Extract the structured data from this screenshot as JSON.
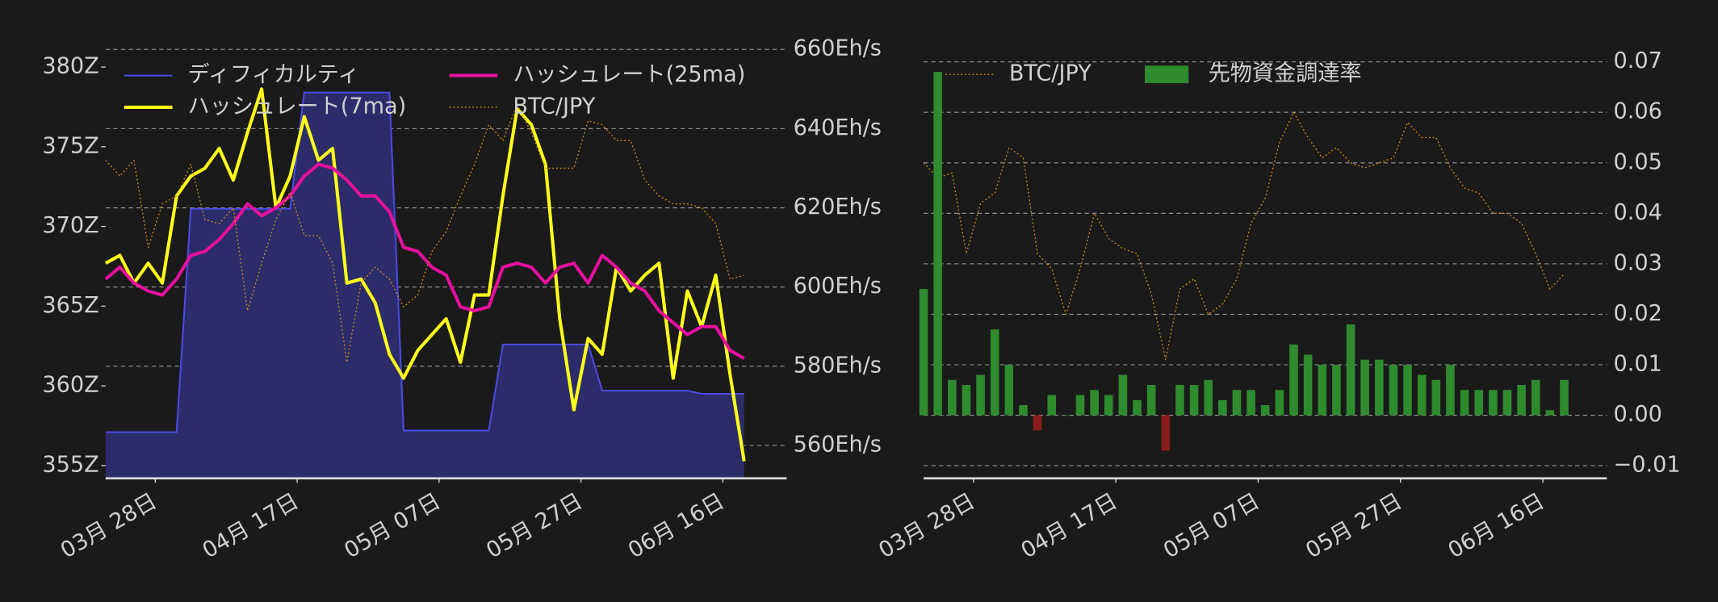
{
  "chart_data": [
    {
      "type": "line",
      "x": [
        "03-21",
        "03-23",
        "03-25",
        "03-27",
        "03-29",
        "03-31",
        "04-02",
        "04-04",
        "04-06",
        "04-08",
        "04-10",
        "04-12",
        "04-14",
        "04-16",
        "04-18",
        "04-20",
        "04-22",
        "04-24",
        "04-26",
        "04-28",
        "04-30",
        "05-02",
        "05-04",
        "05-06",
        "05-08",
        "05-10",
        "05-12",
        "05-14",
        "05-16",
        "05-18",
        "05-20",
        "05-22",
        "05-24",
        "05-26",
        "05-28",
        "05-30",
        "06-01",
        "06-03",
        "06-05",
        "06-07",
        "06-09",
        "06-11",
        "06-13",
        "06-15",
        "06-17",
        "06-19"
      ],
      "xlim": [
        "03-21",
        "06-25"
      ],
      "xticks": [
        {
          "value": "03-28",
          "label": "03月 28日"
        },
        {
          "value": "04-17",
          "label": "04月 17日"
        },
        {
          "value": "05-07",
          "label": "05月 07日"
        },
        {
          "value": "05-27",
          "label": "05月 27日"
        },
        {
          "value": "06-16",
          "label": "06月 16日"
        }
      ],
      "ylim": [
        354.2,
        381.8
      ],
      "yticks": [
        {
          "value": 355,
          "label": "355Z"
        },
        {
          "value": 360,
          "label": "360Z"
        },
        {
          "value": 365,
          "label": "365Z"
        },
        {
          "value": 370,
          "label": "370Z"
        },
        {
          "value": 375,
          "label": "375Z"
        },
        {
          "value": 380,
          "label": "380Z"
        }
      ],
      "y2lim": [
        551.7,
        662.8
      ],
      "y2ticks": [
        {
          "value": 560,
          "label": "560Eh/s"
        },
        {
          "value": 580,
          "label": "580Eh/s"
        },
        {
          "value": 600,
          "label": "600Eh/s"
        },
        {
          "value": 620,
          "label": "620Eh/s"
        },
        {
          "value": 640,
          "label": "640Eh/s"
        },
        {
          "value": 660,
          "label": "660Eh/s"
        }
      ],
      "grid": true,
      "series": [
        {
          "name": "ディフィカルティ",
          "type": "area",
          "color": "#4b4be6",
          "fill": "#2c2c6a",
          "values": [
            357.1,
            357.1,
            357.1,
            357.1,
            357.1,
            357.1,
            371.1,
            371.1,
            371.1,
            371.1,
            371.1,
            371.1,
            371.1,
            371.1,
            378.4,
            378.4,
            378.4,
            378.4,
            378.4,
            378.4,
            378.4,
            357.2,
            357.2,
            357.2,
            357.2,
            357.2,
            357.2,
            357.2,
            362.6,
            362.6,
            362.6,
            362.6,
            362.6,
            362.6,
            362.6,
            359.7,
            359.7,
            359.7,
            359.7,
            359.7,
            359.7,
            359.7,
            359.5,
            359.5,
            359.5,
            359.5
          ]
        },
        {
          "name": "ハッシュレート(7ma)",
          "type": "line",
          "axis": "y2",
          "color": "#ffff1a",
          "values": [
            606,
            608,
            601,
            606,
            601,
            623,
            628,
            630,
            635,
            627,
            639,
            650,
            620,
            628,
            643,
            632,
            635,
            601,
            602,
            596,
            583,
            577,
            584,
            588,
            592,
            581,
            598,
            598,
            623,
            645,
            641,
            631,
            592,
            569,
            587,
            583,
            605,
            599,
            603,
            606,
            577,
            599,
            590,
            603,
            578,
            556
          ]
        },
        {
          "name": "ハッシュレート(25ma)",
          "type": "line",
          "axis": "y2",
          "color": "#e8109e",
          "values": [
            602,
            605,
            601,
            599,
            598,
            602,
            608,
            609,
            612,
            616,
            621,
            618,
            620,
            623,
            628,
            631,
            630,
            627,
            623,
            623,
            619,
            610,
            609,
            605,
            603,
            595,
            594,
            595,
            605,
            606,
            605,
            601,
            605,
            606,
            601,
            608,
            605,
            601,
            599,
            594,
            591,
            588,
            590,
            590,
            584,
            582
          ]
        },
        {
          "name": "BTC/JPY",
          "type": "line",
          "axis": "y2",
          "color": "#c8861c",
          "dotted": true,
          "values": [
            632,
            628,
            632,
            610,
            621,
            623,
            631,
            617,
            616,
            620,
            594,
            606,
            617,
            624,
            613,
            613,
            606,
            581,
            601,
            605,
            602,
            595,
            598,
            609,
            614,
            623,
            631,
            641,
            637,
            646,
            639,
            630,
            630,
            630,
            642,
            641,
            637,
            637,
            627,
            623,
            621,
            621,
            620,
            616,
            602,
            603
          ]
        }
      ]
    },
    {
      "type": "bar",
      "x": [
        "03-21",
        "03-23",
        "03-25",
        "03-27",
        "03-29",
        "03-31",
        "04-02",
        "04-04",
        "04-06",
        "04-08",
        "04-10",
        "04-12",
        "04-14",
        "04-16",
        "04-18",
        "04-20",
        "04-22",
        "04-24",
        "04-26",
        "04-28",
        "04-30",
        "05-02",
        "05-04",
        "05-06",
        "05-08",
        "05-10",
        "05-12",
        "05-14",
        "05-16",
        "05-18",
        "05-20",
        "05-22",
        "05-24",
        "05-26",
        "05-28",
        "05-30",
        "06-01",
        "06-03",
        "06-05",
        "06-07",
        "06-09",
        "06-11",
        "06-13",
        "06-15",
        "06-17",
        "06-19"
      ],
      "xlim": [
        "03-21",
        "06-25"
      ],
      "xticks": [
        {
          "value": "03-28",
          "label": "03月 28日"
        },
        {
          "value": "04-17",
          "label": "04月 17日"
        },
        {
          "value": "05-07",
          "label": "05月 07日"
        },
        {
          "value": "05-27",
          "label": "05月 27日"
        },
        {
          "value": "06-16",
          "label": "06月 16日"
        }
      ],
      "ylim": [
        -0.0125,
        0.0725
      ],
      "yticks": [
        {
          "value": -0.01,
          "label": "−0.01"
        },
        {
          "value": 0,
          "label": "0.00"
        },
        0.01,
        0.02,
        0.03,
        0.04,
        0.05,
        0.06,
        0.07
      ],
      "grid": true,
      "series": [
        {
          "name": "BTC/JPY",
          "type": "line",
          "color": "#c8861c",
          "dotted": true,
          "values": [
            0.05,
            0.047,
            0.048,
            0.032,
            0.042,
            0.044,
            0.053,
            0.051,
            0.032,
            0.029,
            0.02,
            0.029,
            0.04,
            0.035,
            0.033,
            0.032,
            0.024,
            0.011,
            0.025,
            0.027,
            0.02,
            0.022,
            0.027,
            0.038,
            0.043,
            0.054,
            0.06,
            0.055,
            0.051,
            0.053,
            0.05,
            0.049,
            0.05,
            0.051,
            0.058,
            0.055,
            0.055,
            0.049,
            0.045,
            0.044,
            0.04,
            0.04,
            0.038,
            0.032,
            0.025,
            0.028
          ]
        },
        {
          "name": "先物資金調達率",
          "type": "bar",
          "color": "#2e8b2e",
          "negative_color": "#8b1c1c",
          "values": [
            0.025,
            0.068,
            0.007,
            0.006,
            0.008,
            0.017,
            0.01,
            0.002,
            -0.003,
            0.004,
            0.0,
            0.004,
            0.005,
            0.004,
            0.008,
            0.003,
            0.006,
            -0.007,
            0.006,
            0.006,
            0.007,
            0.003,
            0.005,
            0.005,
            0.002,
            0.005,
            0.014,
            0.012,
            0.01,
            0.01,
            0.018,
            0.011,
            0.011,
            0.01,
            0.01,
            0.008,
            0.007,
            0.01,
            0.005,
            0.005,
            0.005,
            0.005,
            0.006,
            0.007,
            0.001,
            0.007
          ]
        }
      ]
    }
  ]
}
